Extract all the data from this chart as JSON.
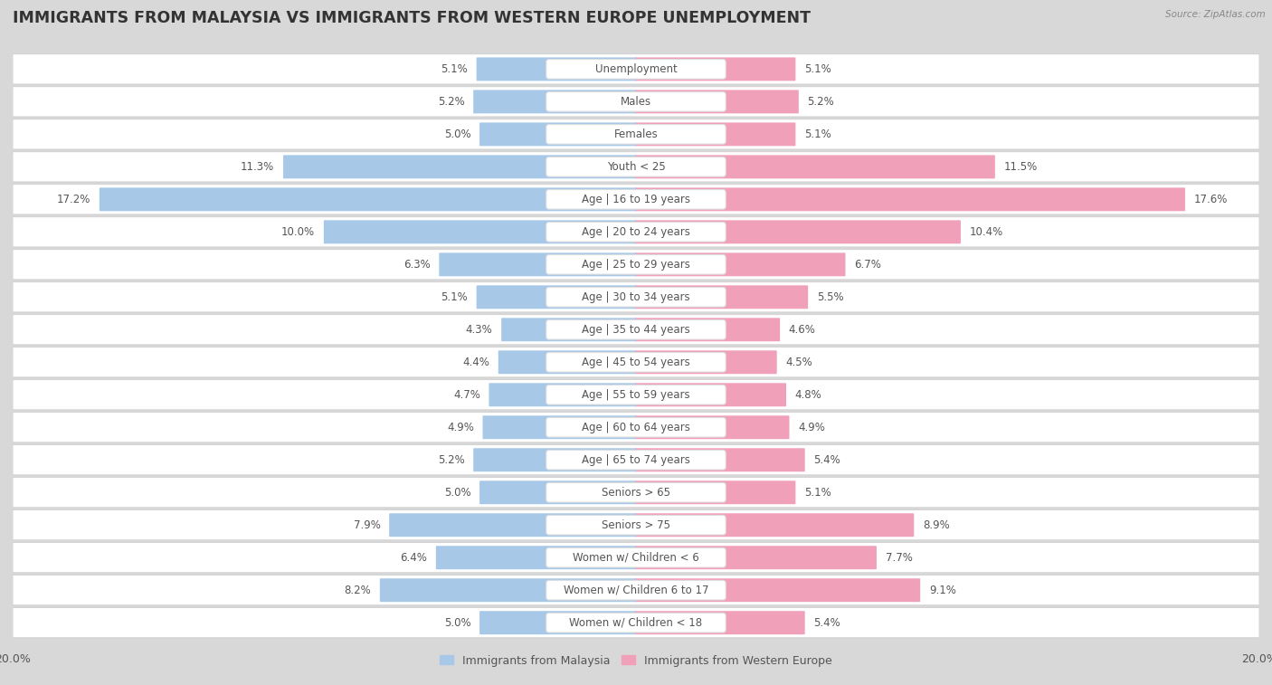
{
  "title": "IMMIGRANTS FROM MALAYSIA VS IMMIGRANTS FROM WESTERN EUROPE UNEMPLOYMENT",
  "source": "Source: ZipAtlas.com",
  "categories": [
    "Unemployment",
    "Males",
    "Females",
    "Youth < 25",
    "Age | 16 to 19 years",
    "Age | 20 to 24 years",
    "Age | 25 to 29 years",
    "Age | 30 to 34 years",
    "Age | 35 to 44 years",
    "Age | 45 to 54 years",
    "Age | 55 to 59 years",
    "Age | 60 to 64 years",
    "Age | 65 to 74 years",
    "Seniors > 65",
    "Seniors > 75",
    "Women w/ Children < 6",
    "Women w/ Children 6 to 17",
    "Women w/ Children < 18"
  ],
  "malaysia_values": [
    5.1,
    5.2,
    5.0,
    11.3,
    17.2,
    10.0,
    6.3,
    5.1,
    4.3,
    4.4,
    4.7,
    4.9,
    5.2,
    5.0,
    7.9,
    6.4,
    8.2,
    5.0
  ],
  "western_europe_values": [
    5.1,
    5.2,
    5.1,
    11.5,
    17.6,
    10.4,
    6.7,
    5.5,
    4.6,
    4.5,
    4.8,
    4.9,
    5.4,
    5.1,
    8.9,
    7.7,
    9.1,
    5.4
  ],
  "malaysia_color": "#a8c8e8",
  "western_europe_color": "#f0a0b8",
  "xlim": 20.0,
  "page_bg": "#d8d8d8",
  "row_bg": "#ffffff",
  "row_gap_bg": "#d8d8d8",
  "title_fontsize": 12.5,
  "label_fontsize": 8.5,
  "value_fontsize": 8.5,
  "legend_malaysia": "Immigrants from Malaysia",
  "legend_western": "Immigrants from Western Europe"
}
